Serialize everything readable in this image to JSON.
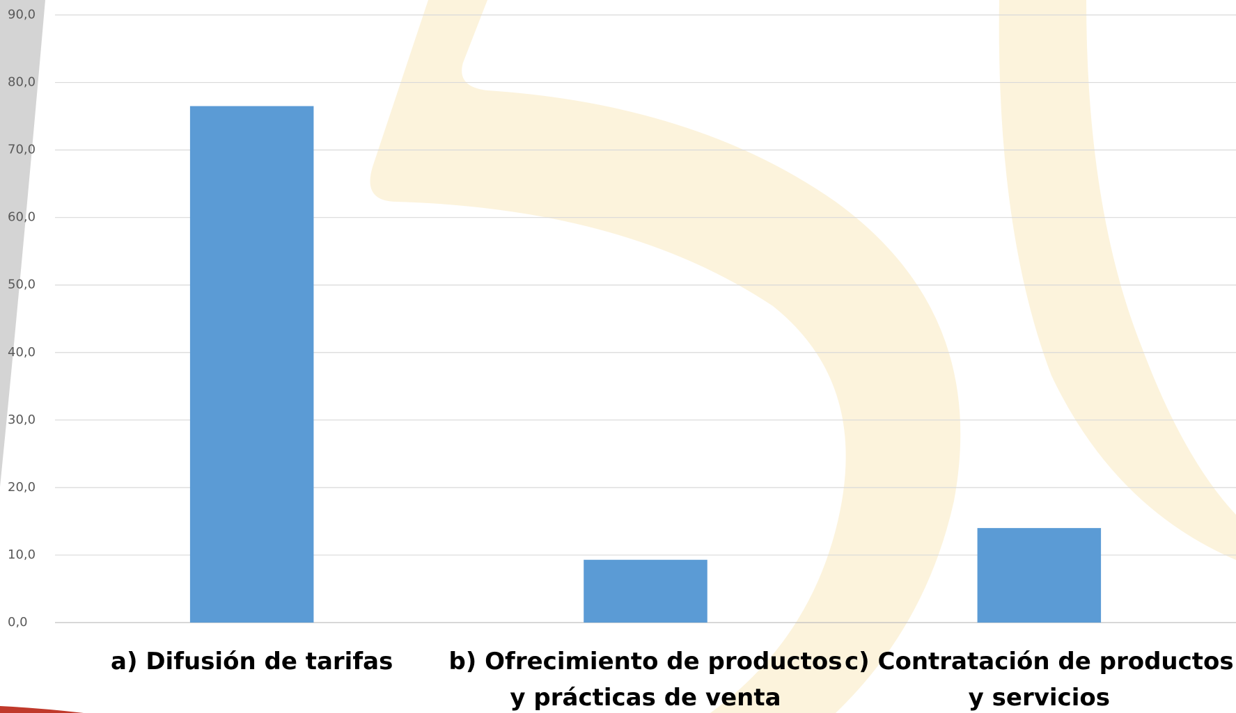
{
  "chart_data": {
    "type": "bar",
    "categories": [
      "a) Difusión de tarifas",
      "b) Ofrecimiento de productos y prácticas de venta",
      "c) Contratación de productos y servicios"
    ],
    "values": [
      76.5,
      9.3,
      14.0
    ],
    "color": "#5b9bd5",
    "ylim": [
      0,
      90
    ],
    "yticks": [
      {
        "value": 0,
        "label": "0,0"
      },
      {
        "value": 10,
        "label": "10,0"
      },
      {
        "value": 20,
        "label": "20,0"
      },
      {
        "value": 30,
        "label": "30,0"
      },
      {
        "value": 40,
        "label": "40,0"
      },
      {
        "value": 50,
        "label": "50,0"
      },
      {
        "value": 60,
        "label": "60,0"
      },
      {
        "value": 70,
        "label": "70,0"
      },
      {
        "value": 80,
        "label": "80,0"
      },
      {
        "value": 90,
        "label": "90,0"
      }
    ],
    "grid": true
  }
}
